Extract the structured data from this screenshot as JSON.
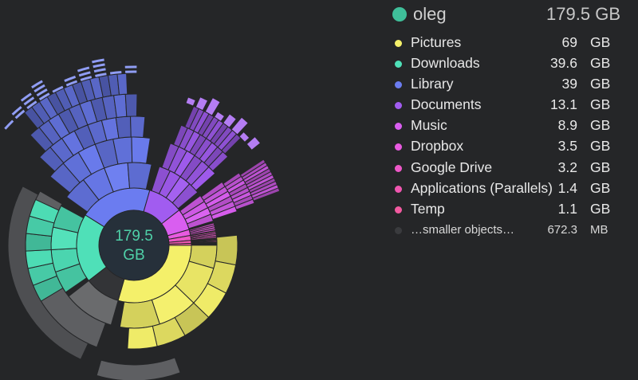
{
  "chart_data": {
    "type": "sunburst",
    "center_label": [
      "179.5",
      "GB"
    ],
    "total": "179.5 GB",
    "root": "oleg",
    "slices": [
      {
        "name": "Pictures",
        "size": "69",
        "unit": "GB",
        "value_gb": 69,
        "color": "#f4f06a"
      },
      {
        "name": "Downloads",
        "size": "39.6",
        "unit": "GB",
        "value_gb": 39.6,
        "color": "#4fe0b8"
      },
      {
        "name": "Library",
        "size": "39",
        "unit": "GB",
        "value_gb": 39,
        "color": "#6b7cf0"
      },
      {
        "name": "Documents",
        "size": "13.1",
        "unit": "GB",
        "value_gb": 13.1,
        "color": "#a15cf0"
      },
      {
        "name": "Music",
        "size": "8.9",
        "unit": "GB",
        "value_gb": 8.9,
        "color": "#d95ef0"
      },
      {
        "name": "Dropbox",
        "size": "3.5",
        "unit": "GB",
        "value_gb": 3.5,
        "color": "#e85ae0"
      },
      {
        "name": "Google Drive",
        "size": "3.2",
        "unit": "GB",
        "value_gb": 3.2,
        "color": "#ee58c8"
      },
      {
        "name": "Applications (Parallels)",
        "size": "1.4",
        "unit": "GB",
        "value_gb": 1.4,
        "color": "#f056b0"
      },
      {
        "name": "Temp",
        "size": "1.1",
        "unit": "GB",
        "value_gb": 1.1,
        "color": "#f25aa0"
      },
      {
        "name": "…smaller objects…",
        "size": "672.3",
        "unit": "MB",
        "value_gb": 0.672,
        "color": "#3a3b3e"
      }
    ]
  },
  "header": {
    "name": "oleg",
    "size": "179.5 GB",
    "dot_color": "#3fbf9a"
  },
  "gray_color": "#6a6b6d"
}
